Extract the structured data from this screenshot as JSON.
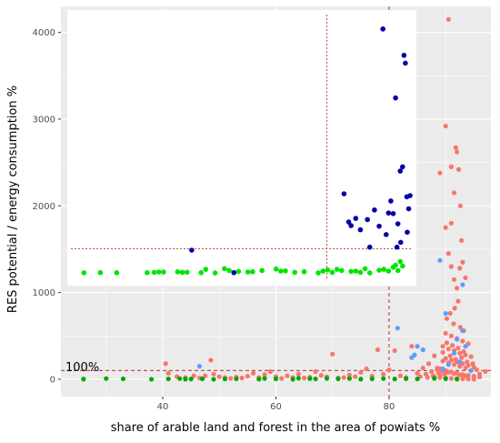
{
  "chart_data": [
    {
      "type": "scatter",
      "role": "main",
      "xlabel": "share of arable land and forest in the area of powiats %",
      "ylabel": "RES potential / energy consumption %",
      "xlim": [
        22,
        98
      ],
      "ylim": [
        -200,
        4300
      ],
      "x_ticks": [
        {
          "value": 40,
          "label": "40"
        },
        {
          "value": 60,
          "label": "60"
        },
        {
          "value": 80,
          "label": "80"
        }
      ],
      "y_ticks": [
        {
          "value": 0,
          "label": "0"
        },
        {
          "value": 1000,
          "label": "1000"
        },
        {
          "value": 2000,
          "label": "2000"
        },
        {
          "value": 3000,
          "label": "3000"
        },
        {
          "value": 4000,
          "label": "4000"
        }
      ],
      "grid": true,
      "background": "#ebebeb",
      "reference_lines": [
        {
          "axis": "y",
          "value": 100,
          "style": "dashed",
          "color": "#c0504d"
        },
        {
          "axis": "x",
          "value": 80,
          "style": "dashed",
          "color": "#c0504d"
        }
      ],
      "annotation": {
        "text": "100%",
        "x": 22.5,
        "y": 100
      },
      "series": [
        {
          "color": "#f8766d",
          "points": [
            [
              40.5,
              180
            ],
            [
              41,
              70
            ],
            [
              42.5,
              30
            ],
            [
              44,
              20
            ],
            [
              45.5,
              40
            ],
            [
              46.5,
              15
            ],
            [
              47.5,
              40
            ],
            [
              48.5,
              220
            ],
            [
              49,
              60
            ],
            [
              50,
              30
            ],
            [
              51,
              20
            ],
            [
              52,
              10
            ],
            [
              53,
              25
            ],
            [
              54,
              15
            ],
            [
              55,
              35
            ],
            [
              56,
              70
            ],
            [
              57,
              20
            ],
            [
              58,
              55
            ],
            [
              59,
              90
            ],
            [
              60,
              30
            ],
            [
              61,
              10
            ],
            [
              62,
              40
            ],
            [
              63,
              20
            ],
            [
              64,
              60
            ],
            [
              65,
              15
            ],
            [
              66,
              25
            ],
            [
              67,
              90
            ],
            [
              68,
              45
            ],
            [
              69,
              30
            ],
            [
              70,
              290
            ],
            [
              71,
              15
            ],
            [
              72,
              20
            ],
            [
              73,
              50
            ],
            [
              74,
              30
            ],
            [
              75,
              80
            ],
            [
              76,
              120
            ],
            [
              77,
              35
            ],
            [
              78,
              340
            ],
            [
              79,
              60
            ],
            [
              80,
              110
            ],
            [
              81,
              330
            ],
            [
              82,
              40
            ],
            [
              83,
              20
            ],
            [
              84,
              380
            ],
            [
              85,
              70
            ],
            [
              85.5,
              30
            ],
            [
              86,
              130
            ],
            [
              86.5,
              60
            ],
            [
              87,
              180
            ],
            [
              87.5,
              90
            ],
            [
              88,
              270
            ],
            [
              88.5,
              130
            ],
            [
              89,
              40
            ],
            [
              89.5,
              310
            ],
            [
              89,
              2380
            ],
            [
              90,
              2920
            ],
            [
              90.5,
              4150
            ],
            [
              91,
              2450
            ],
            [
              91.5,
              2150
            ],
            [
              91.8,
              2670
            ],
            [
              92,
              2620
            ],
            [
              92.3,
              2420
            ],
            [
              92.6,
              2000
            ],
            [
              92.8,
              1600
            ],
            [
              91,
              1800
            ],
            [
              90,
              1750
            ],
            [
              90.5,
              1450
            ],
            [
              91,
              1300
            ],
            [
              91.5,
              1150
            ],
            [
              92,
              1050
            ],
            [
              92.5,
              1280
            ],
            [
              93,
              1350
            ],
            [
              93.5,
              1170
            ],
            [
              92.2,
              900
            ],
            [
              91.6,
              820
            ],
            [
              90.8,
              760
            ],
            [
              90.2,
              700
            ],
            [
              91.4,
              640
            ],
            [
              92.6,
              600
            ],
            [
              93.2,
              560
            ],
            [
              90,
              530
            ],
            [
              91,
              500
            ],
            [
              92,
              470
            ],
            [
              93,
              440
            ],
            [
              94,
              410
            ],
            [
              89.5,
              380
            ],
            [
              90.5,
              350
            ],
            [
              91.5,
              330
            ],
            [
              92.5,
              300
            ],
            [
              93.5,
              280
            ],
            [
              94.5,
              260
            ],
            [
              90,
              240
            ],
            [
              91,
              220
            ],
            [
              92,
              200
            ],
            [
              93,
              180
            ],
            [
              94,
              160
            ],
            [
              95,
              140
            ],
            [
              89,
              120
            ],
            [
              90,
              100
            ],
            [
              91,
              85
            ],
            [
              92,
              70
            ],
            [
              93,
              55
            ],
            [
              94,
              45
            ],
            [
              95,
              35
            ],
            [
              96,
              25
            ],
            [
              89.5,
              210
            ],
            [
              90.5,
              190
            ],
            [
              91.5,
              170
            ],
            [
              92.5,
              150
            ],
            [
              93.5,
              130
            ],
            [
              88.5,
              110
            ],
            [
              89.5,
              95
            ],
            [
              90.5,
              80
            ],
            [
              91.5,
              65
            ],
            [
              92.5,
              50
            ],
            [
              93.5,
              40
            ],
            [
              88,
              30
            ],
            [
              89,
              20
            ],
            [
              90,
              15
            ],
            [
              91,
              10
            ],
            [
              92,
              8
            ],
            [
              93,
              5
            ],
            [
              94,
              3
            ],
            [
              95,
              0
            ],
            [
              96,
              60
            ],
            [
              97,
              90
            ],
            [
              90.2,
              420
            ],
            [
              91.2,
              390
            ],
            [
              92.2,
              360
            ],
            [
              93.2,
              320
            ],
            [
              92.8,
              250
            ],
            [
              91.8,
              230
            ],
            [
              90.8,
              270
            ],
            [
              93.8,
              200
            ],
            [
              94.8,
              180
            ],
            [
              95.5,
              110
            ],
            [
              89.8,
              60
            ],
            [
              88.8,
              70
            ],
            [
              87.8,
              40
            ],
            [
              86.8,
              20
            ]
          ]
        },
        {
          "color": "#00a700",
          "points": [
            [
              26,
              2
            ],
            [
              30,
              8
            ],
            [
              33,
              5
            ],
            [
              38,
              0
            ],
            [
              41,
              4
            ],
            [
              43,
              8
            ],
            [
              44,
              2
            ],
            [
              45,
              3
            ],
            [
              47,
              5
            ],
            [
              49,
              0
            ],
            [
              51,
              3
            ],
            [
              53,
              6
            ],
            [
              57,
              2
            ],
            [
              58,
              10
            ],
            [
              60,
              5
            ],
            [
              63,
              0
            ],
            [
              64,
              12
            ],
            [
              66,
              8
            ],
            [
              67,
              4
            ],
            [
              69,
              10
            ],
            [
              71,
              6
            ],
            [
              73,
              9
            ],
            [
              75,
              2
            ],
            [
              77,
              5
            ],
            [
              79,
              8
            ],
            [
              81,
              3
            ],
            [
              83,
              7
            ],
            [
              85,
              4
            ],
            [
              88,
              10
            ],
            [
              90,
              6
            ],
            [
              92,
              2
            ]
          ]
        },
        {
          "color": "#619cff",
          "points": [
            [
              46.5,
              150
            ],
            [
              84,
              250
            ],
            [
              84.5,
              280
            ],
            [
              85,
              380
            ],
            [
              86,
              340
            ],
            [
              81.5,
              590
            ],
            [
              89,
              1370
            ],
            [
              90,
              760
            ],
            [
              92,
              460
            ],
            [
              93,
              560
            ],
            [
              91.5,
              300
            ],
            [
              92.5,
              200
            ],
            [
              90.5,
              170
            ],
            [
              89.5,
              120
            ],
            [
              93.5,
              380
            ],
            [
              94.5,
              100
            ],
            [
              93,
              1090
            ]
          ]
        }
      ]
    },
    {
      "type": "scatter",
      "role": "inset",
      "xlim": [
        25,
        96
      ],
      "ylim": [
        -60,
        4250
      ],
      "grid": false,
      "background": "#ffffff",
      "reference_lines": [
        {
          "axis": "y",
          "value": 100,
          "style": "dotted",
          "color": "#c0504d"
        },
        {
          "axis": "x",
          "value": 80,
          "style": "dotted",
          "color": "#c0504d"
        }
      ],
      "series": [
        {
          "color": "#00e600",
          "points": [
            [
              27,
              2
            ],
            [
              30.5,
              5
            ],
            [
              34,
              3
            ],
            [
              40.5,
              4
            ],
            [
              42,
              10
            ],
            [
              43,
              15
            ],
            [
              44,
              15
            ],
            [
              47,
              18
            ],
            [
              48,
              10
            ],
            [
              49,
              12
            ],
            [
              52,
              5
            ],
            [
              53,
              60
            ],
            [
              55,
              0
            ],
            [
              57,
              72
            ],
            [
              58,
              40
            ],
            [
              60,
              25
            ],
            [
              62,
              15
            ],
            [
              63,
              20
            ],
            [
              65,
              40
            ],
            [
              68,
              65
            ],
            [
              69,
              30
            ],
            [
              70,
              35
            ],
            [
              72,
              10
            ],
            [
              74,
              20
            ],
            [
              77,
              0
            ],
            [
              78,
              30
            ],
            [
              79,
              50
            ],
            [
              80,
              10
            ],
            [
              81,
              60
            ],
            [
              82,
              40
            ],
            [
              84,
              25
            ],
            [
              85,
              30
            ],
            [
              86,
              10
            ],
            [
              87,
              70
            ],
            [
              88,
              0
            ],
            [
              90,
              45
            ],
            [
              91,
              60
            ],
            [
              92,
              30
            ],
            [
              93,
              95
            ],
            [
              93.5,
              130
            ],
            [
              94,
              40
            ],
            [
              94.5,
              190
            ],
            [
              95,
              115
            ]
          ]
        },
        {
          "color": "#0000a8",
          "points": [
            [
              50,
              380
            ],
            [
              59,
              5
            ],
            [
              82.5,
              1320
            ],
            [
              83.5,
              850
            ],
            [
              84,
              790
            ],
            [
              85,
              910
            ],
            [
              86,
              720
            ],
            [
              87.5,
              890
            ],
            [
              88,
              430
            ],
            [
              89,
              1050
            ],
            [
              90,
              780
            ],
            [
              90.8,
              4070
            ],
            [
              91.5,
              640
            ],
            [
              92,
              1000
            ],
            [
              92.5,
              1200
            ],
            [
              93.5,
              2920
            ],
            [
              94,
              820
            ],
            [
              94.5,
              1700
            ],
            [
              95,
              1770
            ],
            [
              95.3,
              3630
            ],
            [
              95.6,
              3500
            ],
            [
              95.9,
              1270
            ],
            [
              96,
              680
            ],
            [
              96.3,
              1070
            ],
            [
              96.6,
              1290
            ],
            [
              93,
              990
            ],
            [
              93.8,
              430
            ],
            [
              94.6,
              510
            ]
          ]
        }
      ]
    }
  ]
}
